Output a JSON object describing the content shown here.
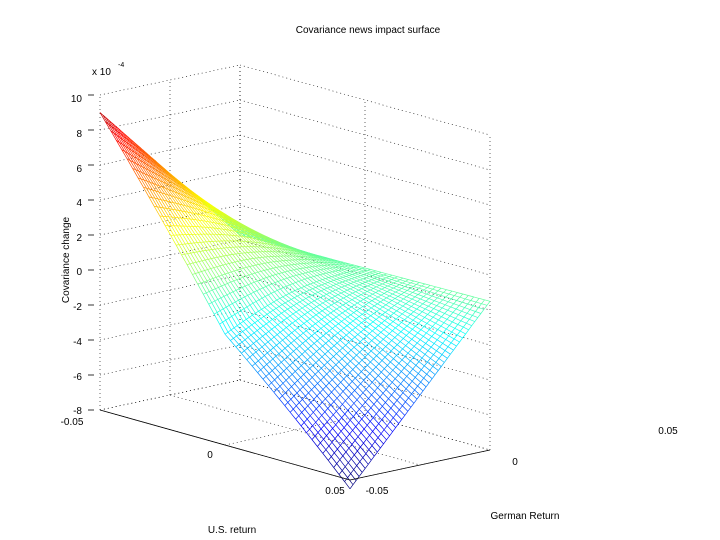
{
  "chart_data": {
    "type": "surface",
    "title": "Covariance news impact surface",
    "zlabel": "Covariance change",
    "zscale": "x 10",
    "zscale_exponent": "-4",
    "xlabel": "U.S. return",
    "ylabel": "German Return",
    "x_ticks": [
      "-0.05",
      "0",
      "0.05"
    ],
    "y_ticks": [
      "-0.05",
      "0",
      "0.05"
    ],
    "z_ticks": [
      "10",
      "8",
      "6",
      "4",
      "2",
      "0",
      "-2",
      "-4",
      "-6",
      "-8"
    ],
    "x_range": [
      -0.05,
      0.05
    ],
    "y_range": [
      -0.05,
      0.05
    ],
    "z_range": [
      -8,
      10
    ],
    "grid": true,
    "colormap": "jet",
    "corner_values": [
      {
        "us": -0.05,
        "german": -0.05,
        "z": 9
      },
      {
        "us": -0.05,
        "german": 0.05,
        "z": 0.3
      },
      {
        "us": 0.05,
        "german": -0.05,
        "z": -8.5
      },
      {
        "us": 0.05,
        "german": 0.05,
        "z": 0.5
      },
      {
        "us": 0,
        "german": 0,
        "z": 0
      }
    ]
  }
}
